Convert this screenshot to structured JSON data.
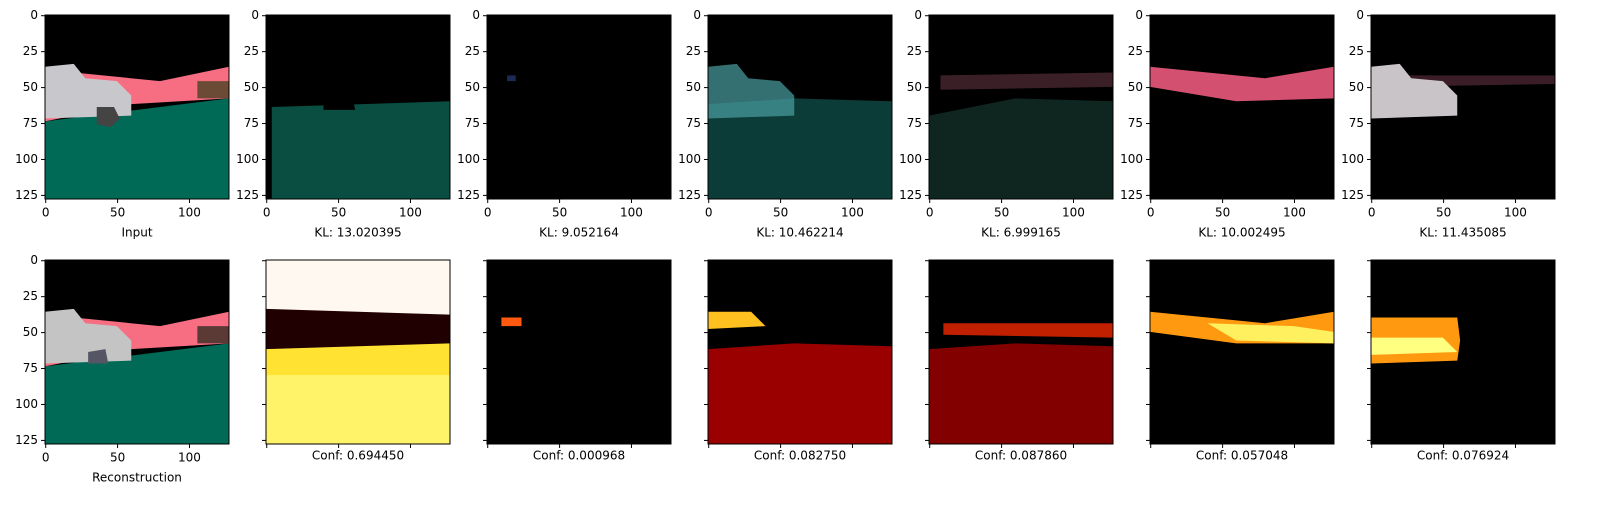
{
  "y_ticks": [
    0,
    25,
    50,
    75,
    100,
    125
  ],
  "x_ticks": [
    0,
    50,
    100
  ],
  "top_row": {
    "labels": [
      "Input",
      "KL: 13.020395",
      "KL: 9.052164",
      "KL: 10.462214",
      "KL: 6.999165",
      "KL: 10.002495",
      "KL: 11.435085"
    ]
  },
  "bottom_row": {
    "labels": [
      "Reconstruction",
      "Conf: 0.694450",
      "Conf: 0.000968",
      "Conf: 0.082750",
      "Conf: 0.087860",
      "Conf: 0.057048",
      "Conf: 0.076924"
    ]
  }
}
